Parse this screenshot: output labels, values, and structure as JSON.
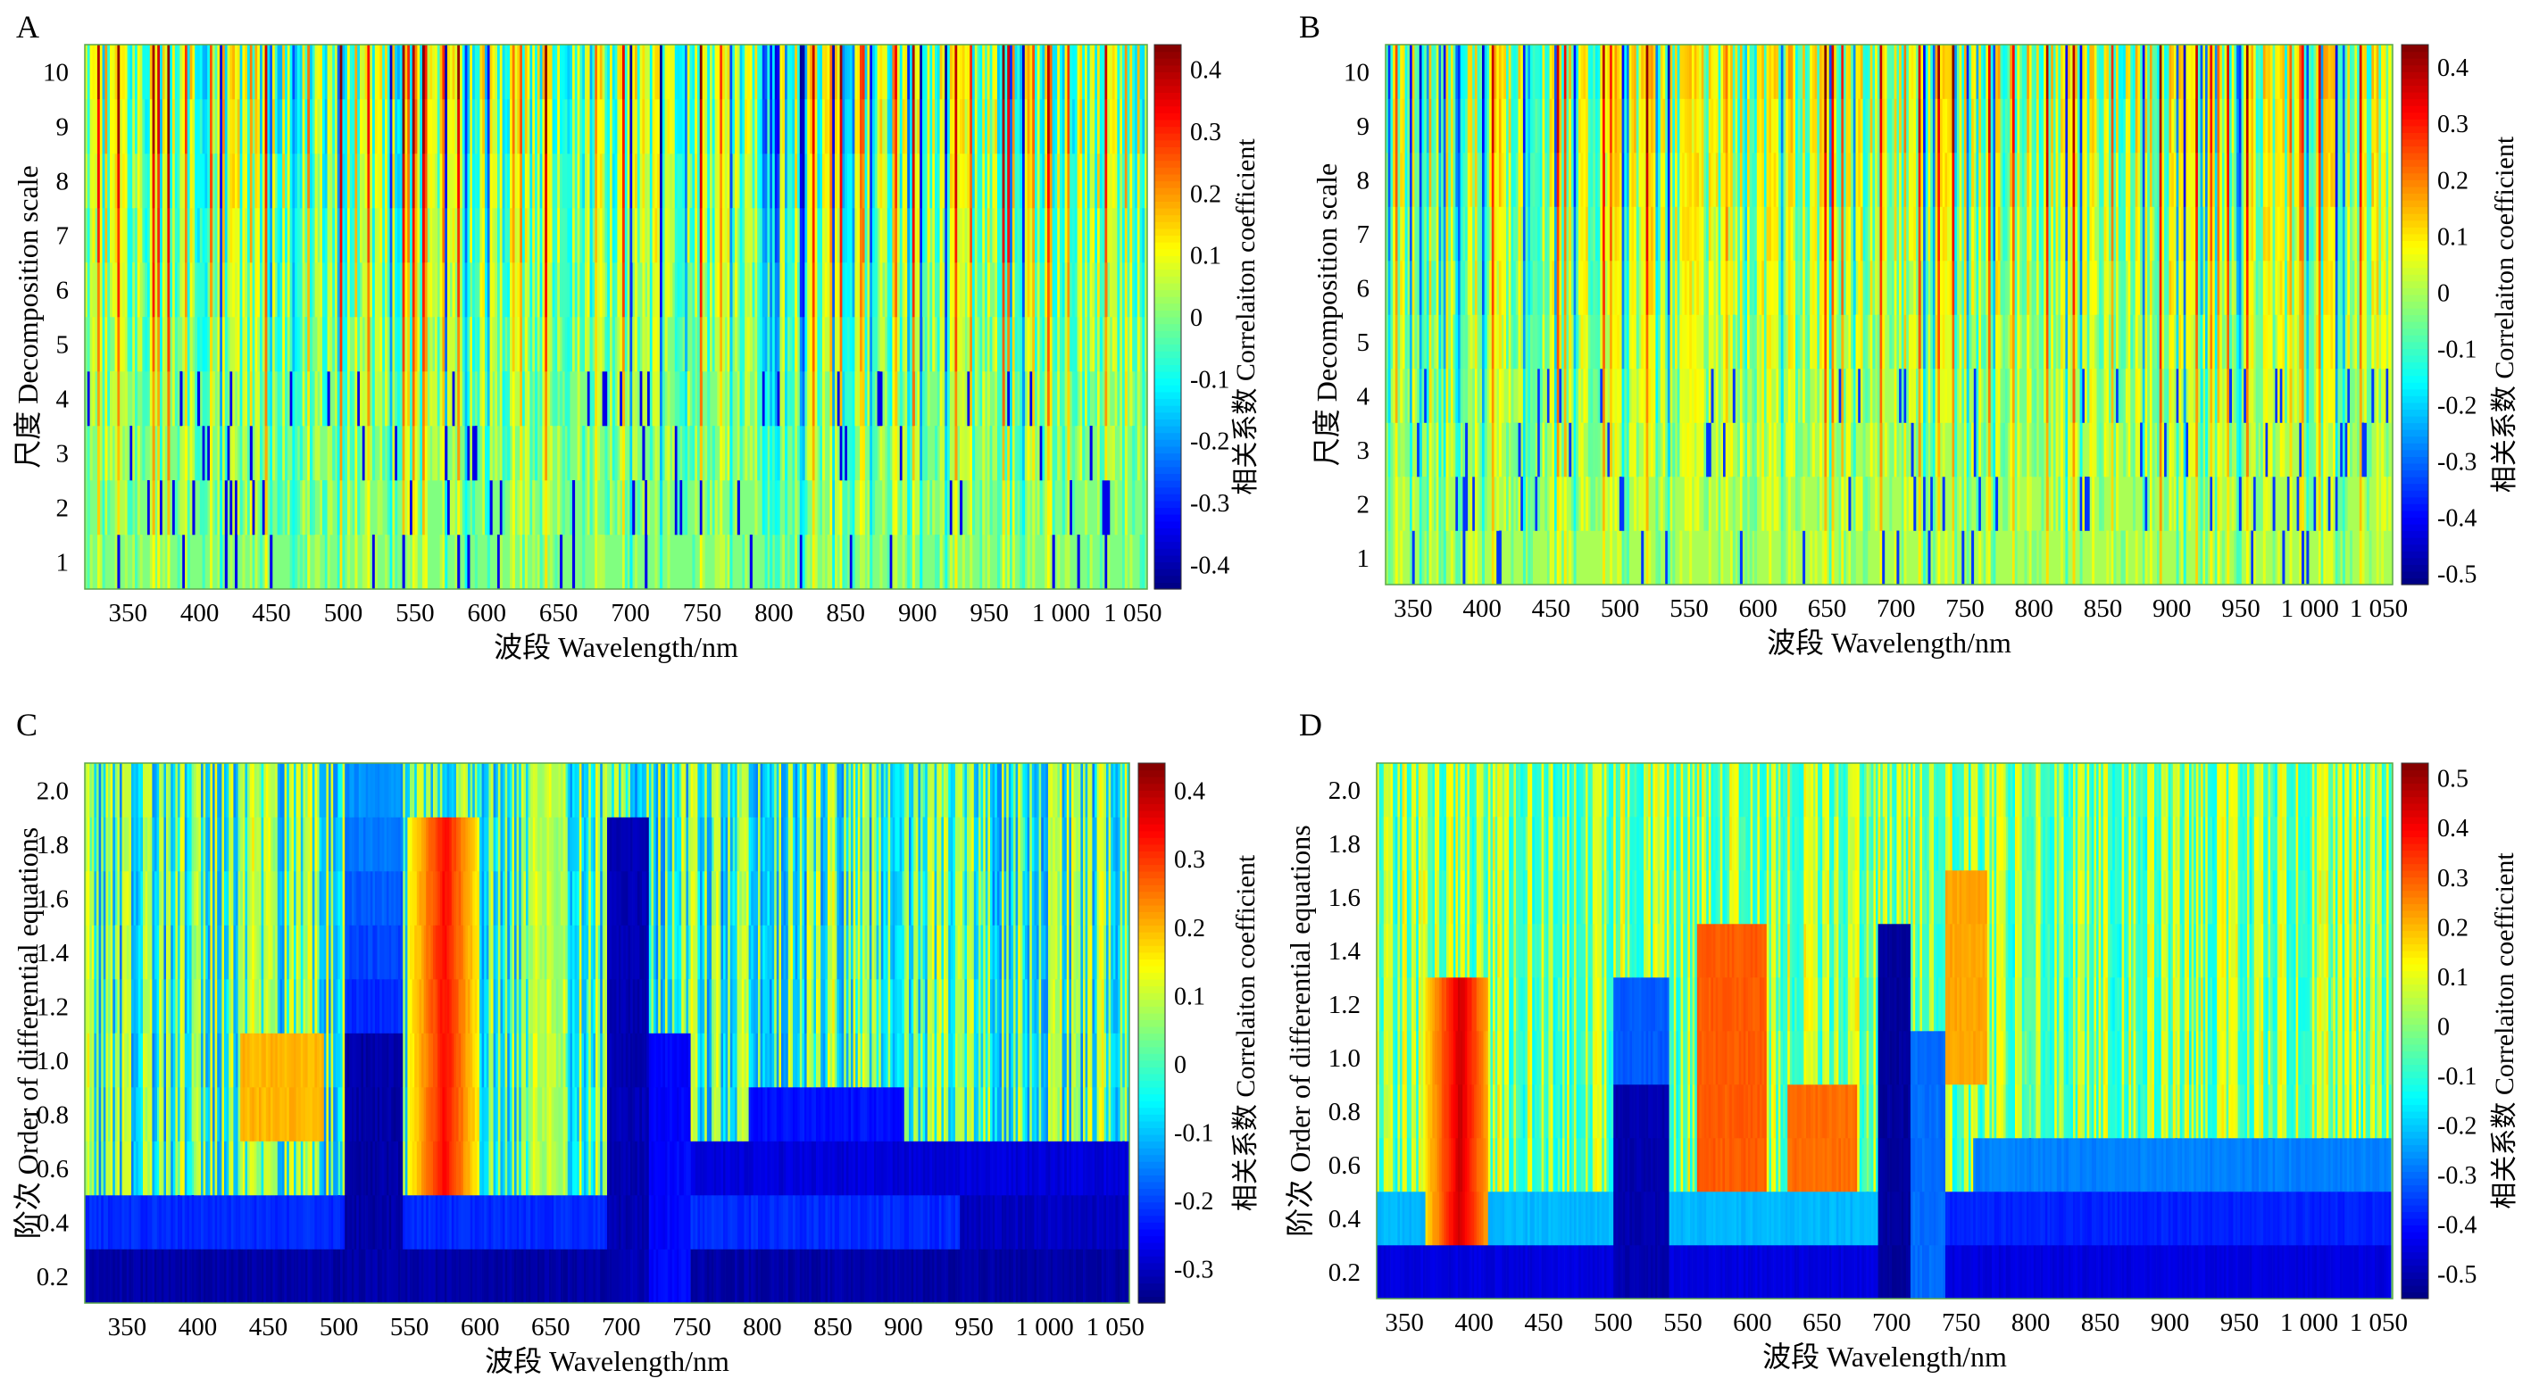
{
  "chart_data": [
    {
      "panel": "A",
      "type": "heatmap",
      "x_tick_labels": [
        "350",
        "400",
        "450",
        "500",
        "550",
        "600",
        "650",
        "700",
        "750",
        "800",
        "850",
        "900",
        "950",
        "1 000",
        "1 050"
      ],
      "x_ticks": [
        350,
        400,
        450,
        500,
        550,
        600,
        650,
        700,
        750,
        800,
        850,
        900,
        950,
        1000,
        1050
      ],
      "xlim": [
        320,
        1060
      ],
      "xlabel": "波段 Wavelength/nm",
      "y_tick_labels": [
        "1",
        "2",
        "3",
        "4",
        "5",
        "6",
        "7",
        "8",
        "9",
        "10"
      ],
      "y_ticks": [
        1,
        2,
        3,
        4,
        5,
        6,
        7,
        8,
        9,
        10
      ],
      "ylim": [
        0.5,
        10.5
      ],
      "ylabel": "尺度 Decomposition scale",
      "colorbar": {
        "label": "相关系数 Correlaiton coefficient",
        "ticks": [
          0.4,
          0.3,
          0.2,
          0.1,
          0,
          -0.1,
          -0.2,
          -0.3,
          -0.4
        ],
        "tick_labels": [
          "0.4",
          "0.3",
          "0.2",
          "0.1",
          "0",
          "-0.1",
          "-0.2",
          "-0.3",
          "-0.4"
        ],
        "range": [
          -0.44,
          0.44
        ]
      },
      "colormap": "jet",
      "data_description": "scale/wavelength correlation stripes"
    },
    {
      "panel": "B",
      "type": "heatmap",
      "x_tick_labels": [
        "350",
        "400",
        "450",
        "500",
        "550",
        "600",
        "650",
        "700",
        "750",
        "800",
        "850",
        "900",
        "950",
        "1 000",
        "1 050"
      ],
      "x_ticks": [
        350,
        400,
        450,
        500,
        550,
        600,
        650,
        700,
        750,
        800,
        850,
        900,
        950,
        1000,
        1050
      ],
      "xlim": [
        330,
        1060
      ],
      "xlabel": "波段 Wavelength/nm",
      "y_tick_labels": [
        "1",
        "2",
        "3",
        "4",
        "5",
        "6",
        "7",
        "8",
        "9",
        "10"
      ],
      "y_ticks": [
        1,
        2,
        3,
        4,
        5,
        6,
        7,
        8,
        9,
        10
      ],
      "ylim": [
        0.5,
        10.5
      ],
      "ylabel": "尺度 Decomposition scale",
      "colorbar": {
        "label": "相关系数 Correlaiton coefficient",
        "ticks": [
          0.4,
          0.3,
          0.2,
          0.1,
          0,
          -0.1,
          -0.2,
          -0.3,
          -0.4,
          -0.5
        ],
        "tick_labels": [
          "0.4",
          "0.3",
          "0.2",
          "0.1",
          "0",
          "-0.1",
          "-0.2",
          "-0.3",
          "-0.4",
          "-0.5"
        ],
        "range": [
          -0.52,
          0.44
        ]
      },
      "colormap": "jet",
      "data_description": "scale/wavelength correlation stripes"
    },
    {
      "panel": "C",
      "type": "heatmap",
      "x_tick_labels": [
        "350",
        "400",
        "450",
        "500",
        "550",
        "600",
        "650",
        "700",
        "750",
        "800",
        "850",
        "900",
        "950",
        "1 000",
        "1 050"
      ],
      "x_ticks": [
        350,
        400,
        450,
        500,
        550,
        600,
        650,
        700,
        750,
        800,
        850,
        900,
        950,
        1000,
        1050
      ],
      "xlim": [
        320,
        1060
      ],
      "xlabel": "波段 Wavelength/nm",
      "y_tick_labels": [
        "0.2",
        "0.4",
        "0.6",
        "0.8",
        "1.0",
        "1.2",
        "1.4",
        "1.6",
        "1.8",
        "2.0"
      ],
      "y_ticks": [
        0.2,
        0.4,
        0.6,
        0.8,
        1.0,
        1.2,
        1.4,
        1.6,
        1.8,
        2.0
      ],
      "ylim": [
        0.1,
        2.1
      ],
      "ylabel": "阶次 Order of differential equations",
      "colorbar": {
        "label": "相关系数 Correlaiton coefficient",
        "ticks": [
          0.4,
          0.3,
          0.2,
          0.1,
          0,
          -0.1,
          -0.2,
          -0.3
        ],
        "tick_labels": [
          "0.4",
          "0.3",
          "0.2",
          "0.1",
          "0",
          "-0.1",
          "-0.2",
          "-0.3"
        ],
        "range": [
          -0.35,
          0.44
        ]
      },
      "colormap": "jet",
      "data_description": "order/wavelength correlation map, strong negative band at low orders"
    },
    {
      "panel": "D",
      "type": "heatmap",
      "x_tick_labels": [
        "350",
        "400",
        "450",
        "500",
        "550",
        "600",
        "650",
        "700",
        "750",
        "800",
        "850",
        "900",
        "950",
        "1 000",
        "1 050"
      ],
      "x_ticks": [
        350,
        400,
        450,
        500,
        550,
        600,
        650,
        700,
        750,
        800,
        850,
        900,
        950,
        1000,
        1050
      ],
      "xlim": [
        330,
        1060
      ],
      "xlabel": "波段 Wavelength/nm",
      "y_tick_labels": [
        "0.2",
        "0.4",
        "0.6",
        "0.8",
        "1.0",
        "1.2",
        "1.4",
        "1.6",
        "1.8",
        "2.0"
      ],
      "y_ticks": [
        0.2,
        0.4,
        0.6,
        0.8,
        1.0,
        1.2,
        1.4,
        1.6,
        1.8,
        2.0
      ],
      "ylim": [
        0.1,
        2.1
      ],
      "ylabel": "阶次 Order of differential equations",
      "colorbar": {
        "label": "相关系数 Correlaiton coefficient",
        "ticks": [
          0.5,
          0.4,
          0.3,
          0.2,
          0.1,
          0,
          -0.1,
          -0.2,
          -0.3,
          -0.4,
          -0.5
        ],
        "tick_labels": [
          "0.5",
          "0.4",
          "0.3",
          "0.2",
          "0.1",
          "0",
          "-0.1",
          "-0.2",
          "-0.3",
          "-0.4",
          "-0.5"
        ],
        "range": [
          -0.55,
          0.53
        ]
      },
      "colormap": "jet",
      "data_description": "order/wavelength correlation map, strong negative band at low orders"
    }
  ]
}
